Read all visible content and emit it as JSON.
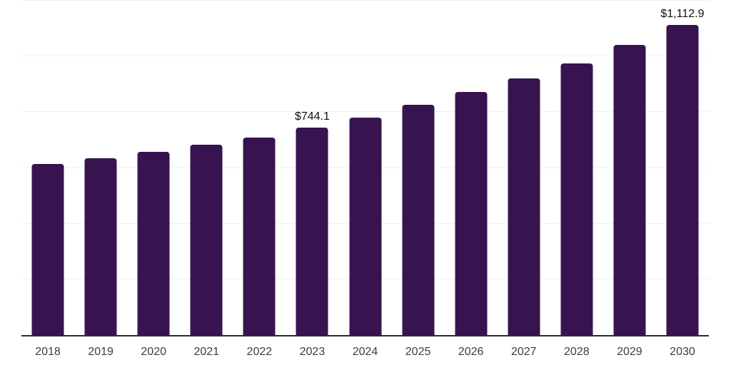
{
  "chart_data": {
    "type": "bar",
    "title": "",
    "xlabel": "",
    "ylabel": "",
    "categories": [
      "2018",
      "2019",
      "2020",
      "2021",
      "2022",
      "2023",
      "2024",
      "2025",
      "2026",
      "2027",
      "2028",
      "2029",
      "2030"
    ],
    "values": [
      613,
      634,
      657,
      683,
      709,
      744.1,
      781,
      826,
      872,
      921,
      976,
      1042,
      1112.9
    ],
    "annotations": [
      {
        "category": "2023",
        "label": "$744.1"
      },
      {
        "category": "2030",
        "label": "$1,112.9"
      }
    ],
    "ylim": [
      0,
      1200
    ],
    "grid_step": 200,
    "grid": true,
    "legend": "none",
    "colors": {
      "bar": "#371450",
      "grid": "#f0f0f0",
      "axis": "#2b2b2b",
      "tick_label": "#3d3d3d",
      "data_label": "#111111"
    }
  }
}
